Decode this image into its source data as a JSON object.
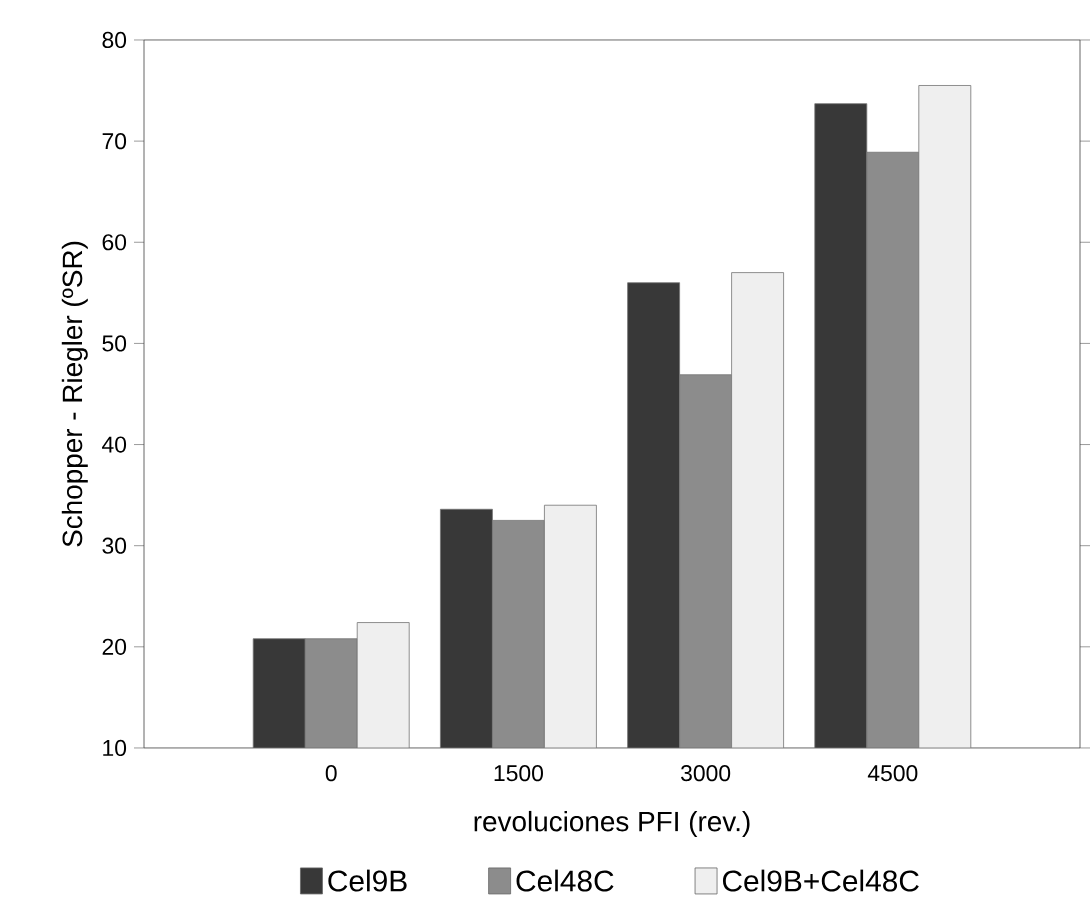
{
  "chart_data": {
    "type": "bar",
    "xlabel": "revoluciones PFI (rev.)",
    "ylabel": "Schopper - Riegler  (ºSR)",
    "categories": [
      "0",
      "1500",
      "3000",
      "4500"
    ],
    "series": [
      {
        "name": "Cel9B",
        "color": "#383838",
        "values": [
          20.8,
          33.6,
          56.0,
          73.7
        ]
      },
      {
        "name": "Cel48C",
        "color": "#8c8c8c",
        "values": [
          20.8,
          32.5,
          46.9,
          68.9
        ]
      },
      {
        "name": "Cel9B+Cel48C",
        "color": "#efefef",
        "values": [
          22.4,
          34.0,
          57.0,
          75.5
        ]
      }
    ],
    "ylim": [
      10,
      80
    ],
    "yticks": [
      10,
      20,
      30,
      40,
      50,
      60,
      70,
      80
    ],
    "grid": false,
    "legend": "bottom"
  }
}
